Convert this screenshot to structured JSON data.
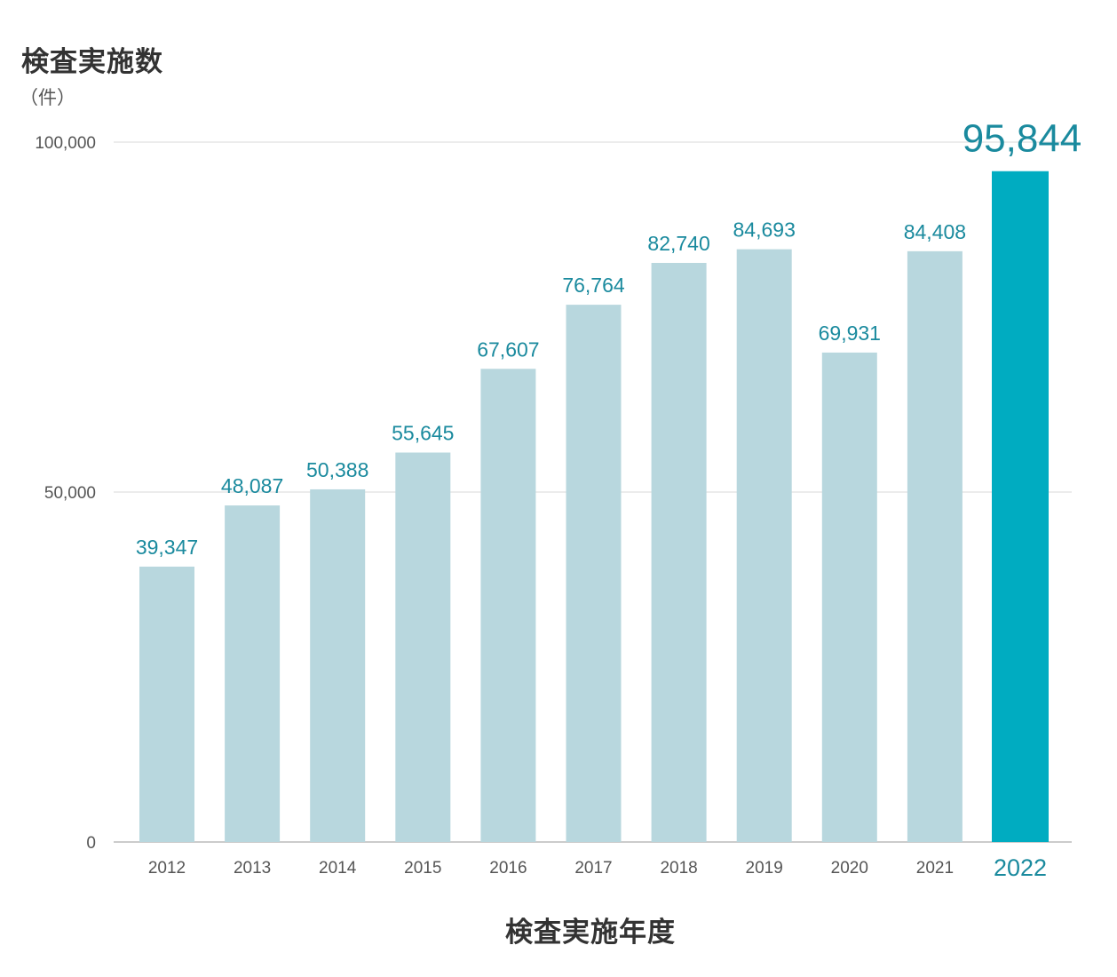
{
  "chart_data": {
    "type": "bar",
    "title": "検査実施数",
    "ylabel": "（件）",
    "xlabel": "検査実施年度",
    "categories": [
      "2012",
      "2013",
      "2014",
      "2015",
      "2016",
      "2017",
      "2018",
      "2019",
      "2020",
      "2021",
      "2022"
    ],
    "values": [
      39347,
      48087,
      50388,
      55645,
      67607,
      76764,
      82740,
      84693,
      69931,
      84408,
      95844
    ],
    "value_labels": [
      "39,347",
      "48,087",
      "50,388",
      "55,645",
      "67,607",
      "76,764",
      "82,740",
      "84,693",
      "69,931",
      "84,408",
      "95,844"
    ],
    "yticks": [
      0,
      50000,
      100000
    ],
    "ytick_labels": [
      "0",
      "50,000",
      "100,000"
    ],
    "ylim": [
      0,
      100000
    ],
    "grid": true,
    "highlight_category": "2022",
    "colors": {
      "bar": "#b8d7de",
      "bar_highlight": "#00acc1",
      "value_label": "#1a8a9e",
      "value_label_highlight": "#1a8a9e",
      "grid": "#e6e6e6",
      "axis": "#cccccc",
      "tick_text": "#555555",
      "title_text": "#333333"
    }
  }
}
